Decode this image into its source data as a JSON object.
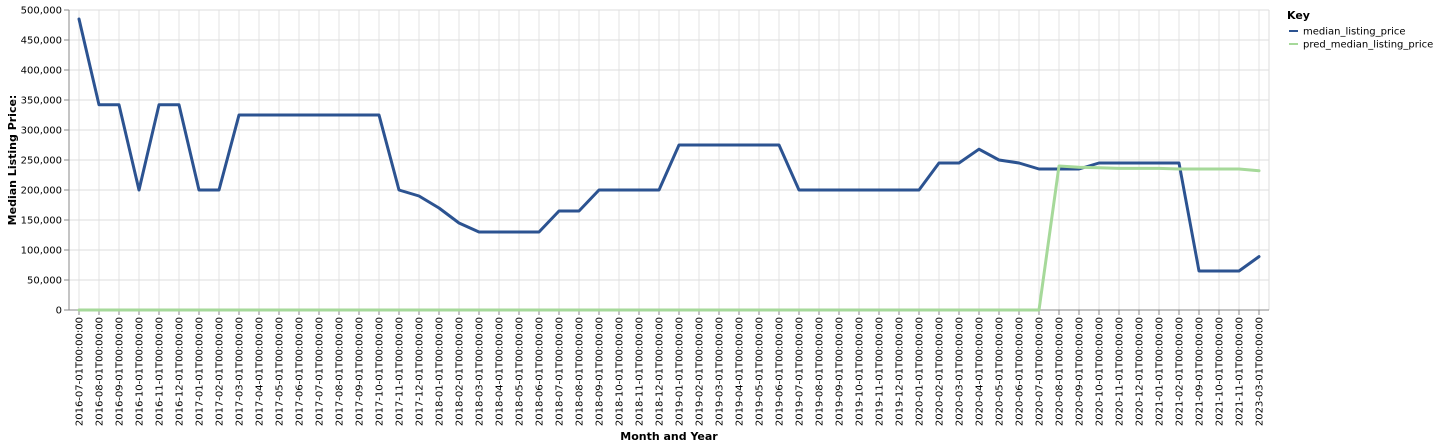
{
  "chart_data": {
    "type": "line",
    "xlabel": "Month and Year",
    "ylabel": "Median Listing Price:",
    "ylim": [
      0,
      500000
    ],
    "y_ticks": [
      "0",
      "50,000",
      "100,000",
      "150,000",
      "200,000",
      "250,000",
      "300,000",
      "350,000",
      "400,000",
      "450,000",
      "500,000"
    ],
    "y_tick_values": [
      0,
      50000,
      100000,
      150000,
      200000,
      250000,
      300000,
      350000,
      400000,
      450000,
      500000
    ],
    "grid": true,
    "legend": {
      "title": "Key",
      "position": "right"
    },
    "categories": [
      "2016-07-01T00:00:00",
      "2016-08-01T00:00:00",
      "2016-09-01T00:00:00",
      "2016-10-01T00:00:00",
      "2016-11-01T00:00:00",
      "2016-12-01T00:00:00",
      "2017-01-01T00:00:00",
      "2017-02-01T00:00:00",
      "2017-03-01T00:00:00",
      "2017-04-01T00:00:00",
      "2017-05-01T00:00:00",
      "2017-06-01T00:00:00",
      "2017-07-01T00:00:00",
      "2017-08-01T00:00:00",
      "2017-09-01T00:00:00",
      "2017-10-01T00:00:00",
      "2017-11-01T00:00:00",
      "2017-12-01T00:00:00",
      "2018-01-01T00:00:00",
      "2018-02-01T00:00:00",
      "2018-03-01T00:00:00",
      "2018-04-01T00:00:00",
      "2018-05-01T00:00:00",
      "2018-06-01T00:00:00",
      "2018-07-01T00:00:00",
      "2018-08-01T00:00:00",
      "2018-09-01T00:00:00",
      "2018-10-01T00:00:00",
      "2018-11-01T00:00:00",
      "2018-12-01T00:00:00",
      "2019-01-01T00:00:00",
      "2019-02-01T00:00:00",
      "2019-03-01T00:00:00",
      "2019-04-01T00:00:00",
      "2019-05-01T00:00:00",
      "2019-06-01T00:00:00",
      "2019-07-01T00:00:00",
      "2019-08-01T00:00:00",
      "2019-09-01T00:00:00",
      "2019-10-01T00:00:00",
      "2019-11-01T00:00:00",
      "2019-12-01T00:00:00",
      "2020-01-01T00:00:00",
      "2020-02-01T00:00:00",
      "2020-03-01T00:00:00",
      "2020-04-01T00:00:00",
      "2020-05-01T00:00:00",
      "2020-06-01T00:00:00",
      "2020-07-01T00:00:00",
      "2020-08-01T00:00:00",
      "2020-09-01T00:00:00",
      "2020-10-01T00:00:00",
      "2020-11-01T00:00:00",
      "2020-12-01T00:00:00",
      "2021-01-01T00:00:00",
      "2021-02-01T00:00:00",
      "2021-09-01T00:00:00",
      "2021-10-01T00:00:00",
      "2021-11-01T00:00:00",
      "2023-03-01T00:00:00"
    ],
    "series": [
      {
        "name": "median_listing_price",
        "color": "#2c5391",
        "values": [
          485000,
          342000,
          342000,
          200000,
          342000,
          342000,
          200000,
          200000,
          325000,
          325000,
          325000,
          325000,
          325000,
          325000,
          325000,
          325000,
          200000,
          190000,
          170000,
          145000,
          130000,
          130000,
          130000,
          130000,
          165000,
          165000,
          200000,
          200000,
          200000,
          200000,
          275000,
          275000,
          275000,
          275000,
          275000,
          275000,
          200000,
          200000,
          200000,
          200000,
          200000,
          200000,
          200000,
          245000,
          245000,
          268000,
          250000,
          245000,
          235000,
          235000,
          235000,
          245000,
          245000,
          245000,
          245000,
          245000,
          65000,
          65000,
          65000,
          89000
        ]
      },
      {
        "name": "pred_median_listing_price",
        "color": "#a6d99a",
        "values": [
          0,
          0,
          0,
          0,
          0,
          0,
          0,
          0,
          0,
          0,
          0,
          0,
          0,
          0,
          0,
          0,
          0,
          0,
          0,
          0,
          0,
          0,
          0,
          0,
          0,
          0,
          0,
          0,
          0,
          0,
          0,
          0,
          0,
          0,
          0,
          0,
          0,
          0,
          0,
          0,
          0,
          0,
          0,
          0,
          0,
          0,
          0,
          0,
          0,
          240000,
          238000,
          237000,
          236000,
          236000,
          236000,
          235000,
          235000,
          235000,
          235000,
          232000
        ]
      }
    ]
  }
}
